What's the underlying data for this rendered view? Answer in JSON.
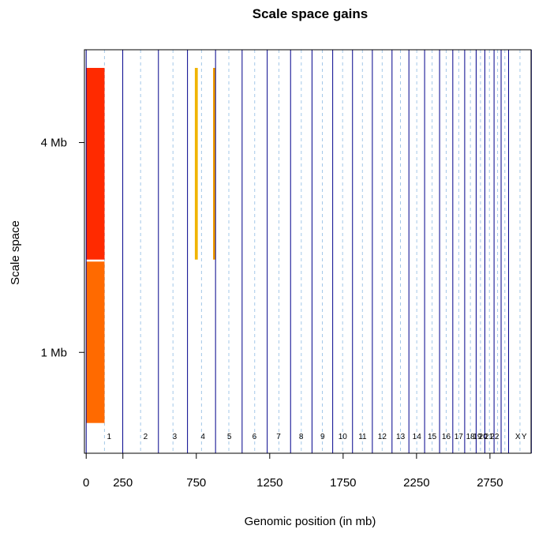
{
  "chart_data": {
    "type": "segment",
    "title": "Scale space gains",
    "xlabel": "Genomic position (in mb)",
    "ylabel": "Scale space",
    "xlim": [
      -12,
      3030
    ],
    "x_ticks": [
      0,
      250,
      750,
      1250,
      1750,
      2250,
      2750
    ],
    "x_tick_labels": [
      "0",
      "250",
      "750",
      "1250",
      "1750",
      "2250",
      "2750"
    ],
    "y_ticks": [
      {
        "label": "4 Mb",
        "level": 0.77
      },
      {
        "label": "1 Mb",
        "level": 0.25
      }
    ],
    "chromosome_boundaries": [
      0,
      249,
      492,
      690,
      881,
      1062,
      1233,
      1392,
      1538,
      1679,
      1814,
      1949,
      2083,
      2198,
      2305,
      2407,
      2497,
      2578,
      2656,
      2715,
      2778,
      2826,
      2877,
      3032
    ],
    "chromosome_midlines": [
      124.5,
      370.5,
      591,
      785.5,
      971.5,
      1147.5,
      1312.5,
      1465,
      1608.5,
      1746.5,
      1881.5,
      2016,
      2140.5,
      2251.5,
      2356,
      2452,
      2537.5,
      2617,
      2685.5,
      2746.5,
      2802,
      2851.5,
      2954.5
    ],
    "chromosome_labels": [
      {
        "label": "1",
        "x": 156
      },
      {
        "label": "2",
        "x": 404
      },
      {
        "label": "3",
        "x": 603
      },
      {
        "label": "4",
        "x": 795
      },
      {
        "label": "5",
        "x": 975
      },
      {
        "label": "6",
        "x": 1146
      },
      {
        "label": "7",
        "x": 1310
      },
      {
        "label": "8",
        "x": 1464
      },
      {
        "label": "9",
        "x": 1610
      },
      {
        "label": "10",
        "x": 1747
      },
      {
        "label": "11",
        "x": 1882
      },
      {
        "label": "12",
        "x": 2016
      },
      {
        "label": "13",
        "x": 2141
      },
      {
        "label": "14",
        "x": 2252
      },
      {
        "label": "15",
        "x": 2356
      },
      {
        "label": "16",
        "x": 2452
      },
      {
        "label": "17",
        "x": 2537
      },
      {
        "label": "18",
        "x": 2617
      },
      {
        "label": "19",
        "x": 2664
      },
      {
        "label": "20",
        "x": 2703
      },
      {
        "label": "21",
        "x": 2742
      },
      {
        "label": "22",
        "x": 2782
      },
      {
        "label": "X",
        "x": 2940
      },
      {
        "label": "Y",
        "x": 2983
      }
    ],
    "segments": [
      {
        "x0": 0,
        "x1": 125,
        "y0": 0.48,
        "y1": 0.955,
        "color": "#ff2a00"
      },
      {
        "x0": 0,
        "x1": 125,
        "y0": 0.075,
        "y1": 0.475,
        "color": "#ff6a00"
      },
      {
        "x0": 740,
        "x1": 760,
        "y0": 0.48,
        "y1": 0.955,
        "color": "#f0b400"
      },
      {
        "x0": 864,
        "x1": 882,
        "y0": 0.48,
        "y1": 0.955,
        "color": "#f09a00"
      }
    ],
    "colors": {
      "boundary_line": "#00008b",
      "midline": "#a4c8e8"
    },
    "grid": false
  }
}
